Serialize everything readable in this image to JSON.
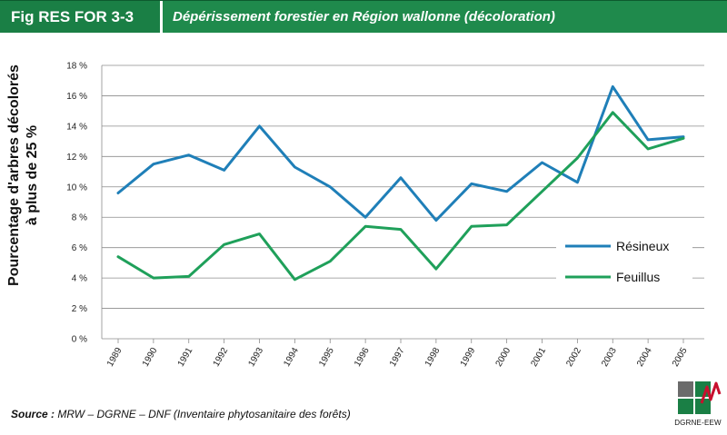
{
  "header": {
    "fig_tag": "Fig RES FOR 3-3",
    "title": "Dépérissement forestier en Région wallonne (décoloration)"
  },
  "chart_data": {
    "type": "line",
    "title": "Dépérissement forestier en Région wallonne (décoloration)",
    "ylabel_line1": "Pourcentage d'arbres décolorés",
    "ylabel_line2": "à plus de 25 %",
    "xlabel": "",
    "categories": [
      "1989",
      "1990",
      "1991",
      "1992",
      "1993",
      "1994",
      "1995",
      "1996",
      "1997",
      "1998",
      "1999",
      "2000",
      "2001",
      "2002",
      "2003",
      "2004",
      "2005"
    ],
    "y_ticks": [
      "0 %",
      "2 %",
      "4 %",
      "6 %",
      "8 %",
      "10 %",
      "12 %",
      "14 %",
      "16 %",
      "18 %"
    ],
    "ylim": [
      0,
      18
    ],
    "grid": true,
    "legend_position": "right-middle",
    "series": [
      {
        "name": "Résineux",
        "color": "#1f7fb8",
        "values": [
          9.6,
          11.5,
          12.1,
          11.1,
          14.0,
          11.3,
          10.0,
          8.0,
          10.6,
          7.8,
          10.2,
          9.7,
          11.6,
          10.3,
          16.6,
          13.1,
          13.3
        ]
      },
      {
        "name": "Feuillus",
        "color": "#1fa05a",
        "values": [
          5.4,
          4.0,
          4.1,
          6.2,
          6.9,
          3.9,
          5.1,
          7.4,
          7.2,
          4.6,
          7.4,
          7.5,
          9.7,
          11.9,
          14.9,
          12.5,
          13.2
        ]
      }
    ]
  },
  "source": {
    "label": "Source :",
    "text": " MRW – DGRNE – DNF (Inventaire phytosanitaire des forêts)"
  },
  "logo": {
    "text": "DGRNE-EEW",
    "green": "#1a7f45",
    "red": "#c8102e"
  }
}
